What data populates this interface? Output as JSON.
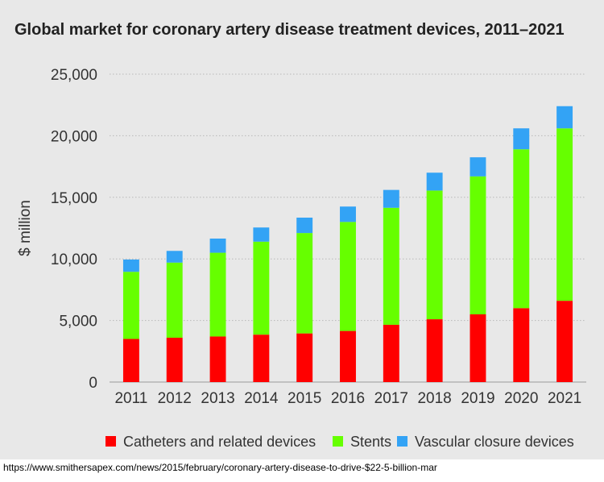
{
  "chart_data": {
    "type": "bar",
    "stacked": true,
    "title": "Global market for coronary artery disease treatment devices, 2011–2021",
    "xlabel": "",
    "ylabel": "$ million",
    "ylim": [
      0,
      25000
    ],
    "yticks": [
      "0",
      "5,000",
      "10,000",
      "15,000",
      "20,000",
      "25,000"
    ],
    "grid": true,
    "legend_position": "bottom",
    "categories": [
      "2011",
      "2012",
      "2013",
      "2014",
      "2015",
      "2016",
      "2017",
      "2018",
      "2019",
      "2020",
      "2021"
    ],
    "series": [
      {
        "name": "Catheters and related devices",
        "color": "#ff0000",
        "values": [
          3500,
          3600,
          3700,
          3850,
          3950,
          4150,
          4650,
          5100,
          5500,
          6000,
          6600
        ]
      },
      {
        "name": "Stents",
        "color": "#66ff00",
        "values": [
          5450,
          6100,
          6800,
          7550,
          8150,
          8850,
          9500,
          10450,
          11200,
          12900,
          14000
        ]
      },
      {
        "name": "Vascular closure devices",
        "color": "#33a3f5",
        "values": [
          1000,
          950,
          1150,
          1150,
          1250,
          1250,
          1450,
          1450,
          1550,
          1700,
          1800
        ]
      }
    ]
  },
  "source_note": "https://www.smithersapex.com/news/2015/february/coronary-artery-disease-to-drive-$22-5-billion-mar"
}
